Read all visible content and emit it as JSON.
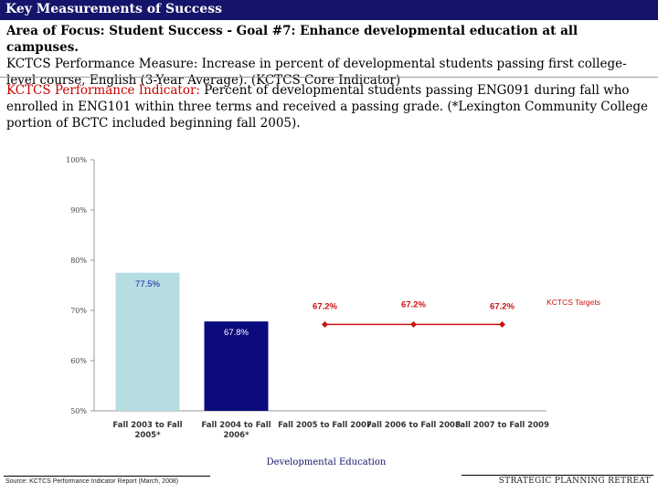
{
  "header": {
    "title": "Key Measurements of Success"
  },
  "focus": {
    "area": "Area of Focus: Student Success - Goal #7:  Enhance developmental education at all campuses.",
    "measure": "KCTCS Performance Measure:  Increase in percent of developmental students passing first college-level course, English (3-Year Average). (KCTCS Core Indicator)"
  },
  "indicator": {
    "label": "KCTCS Performance Indicator:",
    "text": "  Percent of developmental students passing ENG091 during fall who enrolled in ENG101 within three terms and received a passing grade. (*Lexington Community College portion of BCTC included beginning fall 2005)."
  },
  "chart_data": {
    "type": "bar",
    "categories": [
      "Fall 2003 to Fall 2005*",
      "Fall 2004 to Fall 2006*",
      "Fall 2005 to Fall 2007",
      "Fall 2006 to Fall 2008",
      "Fall 2007 to Fall 2009"
    ],
    "category_lines": [
      [
        "Fall 2003 to Fall",
        "2005*"
      ],
      [
        "Fall 2004 to Fall",
        "2006*"
      ],
      [
        "Fall 2005 to Fall 2007"
      ],
      [
        "Fall 2006 to Fall 2008"
      ],
      [
        "Fall 2007 to Fall 2009"
      ]
    ],
    "series": [
      {
        "type": "bar",
        "values": [
          77.5,
          67.8,
          null,
          null,
          null
        ],
        "value_labels": [
          "77.5%",
          "67.8%",
          "",
          "",
          ""
        ],
        "colors": [
          "#b5dde2",
          "#0b0b7e"
        ],
        "label_colors": [
          "#1a1aa8",
          "#ffffff"
        ]
      },
      {
        "name": "KCTCS Targets",
        "type": "line",
        "values": [
          null,
          null,
          67.2,
          67.2,
          67.2
        ],
        "value_labels": [
          "",
          "",
          "67.2%",
          "67.2%",
          "67.2%"
        ],
        "color": "#cc1111"
      }
    ],
    "y_ticks": [
      "50%",
      "60%",
      "70%",
      "80%",
      "90%",
      "100%"
    ],
    "ylim": [
      50,
      100
    ],
    "xlabel": "Developmental Education",
    "ylabel": "",
    "grid": false
  },
  "footer": {
    "source": "Source: KCTCS Performance Indicator Report (March, 2008)",
    "event": "STRATEGIC PLANNING RETREAT"
  }
}
